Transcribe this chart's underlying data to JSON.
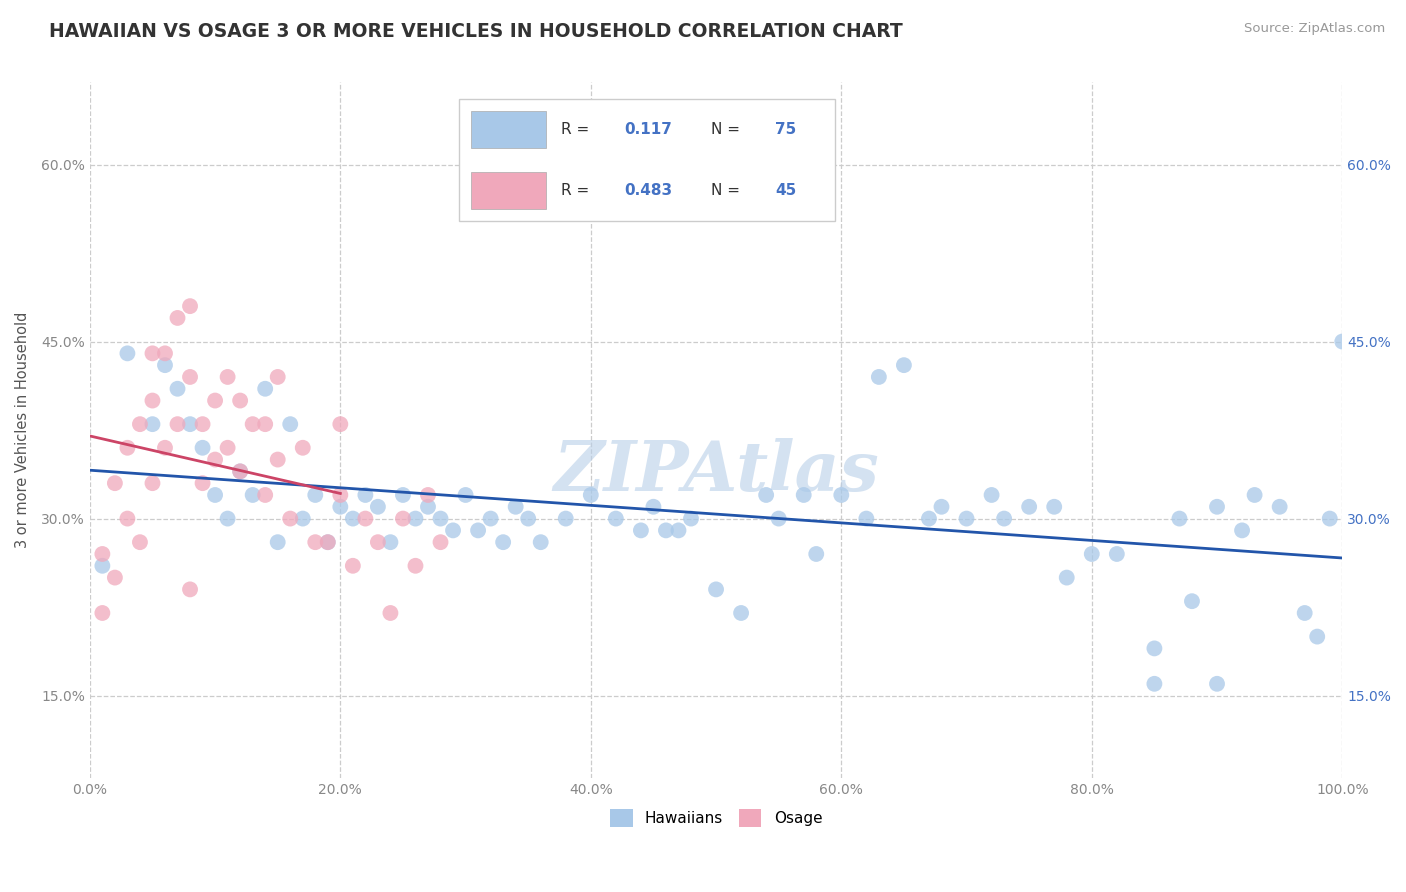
{
  "title": "HAWAIIAN VS OSAGE 3 OR MORE VEHICLES IN HOUSEHOLD CORRELATION CHART",
  "source_text": "Source: ZipAtlas.com",
  "ylabel": "3 or more Vehicles in Household",
  "watermark": "ZIPAtlas",
  "xlim": [
    0.0,
    100.0
  ],
  "ylim": [
    8.0,
    67.0
  ],
  "yticks": [
    15.0,
    30.0,
    45.0,
    60.0
  ],
  "xticks": [
    0.0,
    20.0,
    40.0,
    60.0,
    80.0,
    100.0
  ],
  "blue_color": "#A8C8E8",
  "pink_color": "#F0A8BB",
  "blue_line_color": "#2255AA",
  "pink_line_color": "#CC4466",
  "r_blue": 0.117,
  "n_blue": 75,
  "r_pink": 0.483,
  "n_pink": 45,
  "legend_labels": [
    "Hawaiians",
    "Osage"
  ],
  "background_color": "#ffffff",
  "grid_color": "#cccccc",
  "title_color": "#333333",
  "axis_label_color": "#555555",
  "tick_color": "#888888",
  "right_tick_color": "#4472C4",
  "watermark_color": "#b8cfe8",
  "hawaiians_x": [
    1,
    3,
    5,
    6,
    7,
    8,
    9,
    10,
    11,
    12,
    13,
    14,
    15,
    16,
    17,
    18,
    19,
    20,
    21,
    22,
    23,
    24,
    25,
    26,
    27,
    28,
    29,
    30,
    31,
    32,
    33,
    34,
    35,
    36,
    38,
    40,
    42,
    44,
    45,
    46,
    47,
    48,
    50,
    52,
    54,
    55,
    57,
    58,
    60,
    62,
    63,
    65,
    67,
    68,
    70,
    72,
    73,
    75,
    77,
    78,
    80,
    82,
    85,
    87,
    88,
    90,
    92,
    93,
    95,
    97,
    98,
    99,
    100,
    85,
    90
  ],
  "hawaiians_y": [
    26,
    44,
    38,
    43,
    41,
    38,
    36,
    32,
    30,
    34,
    32,
    41,
    28,
    38,
    30,
    32,
    28,
    31,
    30,
    32,
    31,
    28,
    32,
    30,
    31,
    30,
    29,
    32,
    29,
    30,
    28,
    31,
    30,
    28,
    30,
    32,
    30,
    29,
    31,
    29,
    29,
    30,
    24,
    22,
    32,
    30,
    32,
    27,
    32,
    30,
    42,
    43,
    30,
    31,
    30,
    32,
    30,
    31,
    31,
    25,
    27,
    27,
    19,
    30,
    23,
    31,
    29,
    32,
    31,
    22,
    20,
    30,
    45,
    16,
    16
  ],
  "osage_x": [
    1,
    1,
    2,
    2,
    3,
    3,
    4,
    4,
    5,
    5,
    5,
    6,
    6,
    7,
    7,
    8,
    8,
    9,
    9,
    10,
    10,
    11,
    11,
    12,
    12,
    13,
    14,
    14,
    15,
    15,
    16,
    17,
    18,
    19,
    20,
    20,
    21,
    22,
    23,
    24,
    25,
    26,
    27,
    28,
    8
  ],
  "osage_y": [
    22,
    27,
    25,
    33,
    30,
    36,
    28,
    38,
    33,
    40,
    44,
    36,
    44,
    38,
    47,
    42,
    48,
    33,
    38,
    35,
    40,
    36,
    42,
    34,
    40,
    38,
    32,
    38,
    35,
    42,
    30,
    36,
    28,
    28,
    32,
    38,
    26,
    30,
    28,
    22,
    30,
    26,
    32,
    28,
    24
  ]
}
